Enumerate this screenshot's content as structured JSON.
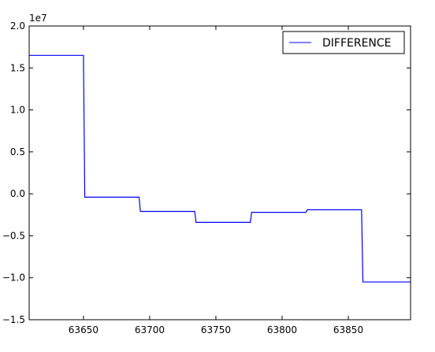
{
  "chart_data": {
    "type": "line",
    "title": "",
    "xlabel": "",
    "ylabel": "",
    "y_scale_label": "1e7",
    "xlim": [
      63609,
      63897
    ],
    "ylim": [
      -1.5,
      2.0
    ],
    "x_ticks": [
      63650,
      63700,
      63750,
      63800,
      63850
    ],
    "x_tick_labels": [
      "63650",
      "63700",
      "63750",
      "63800",
      "63850"
    ],
    "y_ticks": [
      -1.5,
      -1.0,
      -0.5,
      0.0,
      0.5,
      1.0,
      1.5,
      2.0
    ],
    "y_tick_labels": [
      "−1.5",
      "−1.0",
      "−0.5",
      "0.0",
      "0.5",
      "1.0",
      "1.5",
      "2.0"
    ],
    "grid": false,
    "legend_position": "top-right",
    "series": [
      {
        "name": "DIFFERENCE",
        "color": "#0000ff",
        "x": [
          63609,
          63650,
          63651,
          63692,
          63693,
          63734,
          63735,
          63776,
          63777,
          63818,
          63819,
          63860,
          63861,
          63897
        ],
        "y": [
          1.65,
          1.65,
          -0.04,
          -0.04,
          -0.21,
          -0.21,
          -0.34,
          -0.34,
          -0.22,
          -0.22,
          -0.19,
          -0.19,
          -1.05,
          -1.05
        ]
      }
    ]
  }
}
